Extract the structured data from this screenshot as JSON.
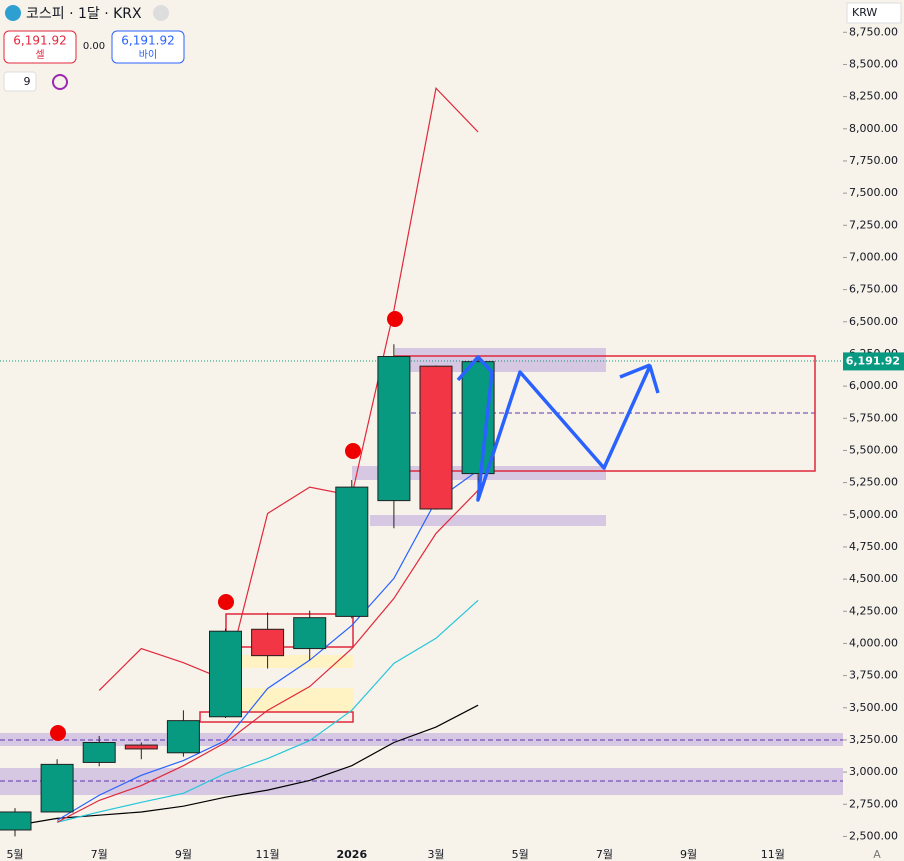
{
  "header": {
    "title": "코스피 · 1달 · KRX",
    "sell_price": "6,191.92",
    "sell_label": "셀",
    "spread": "0.00",
    "buy_price": "6,191.92",
    "buy_label": "바이",
    "indicator_count": "9",
    "currency": "KRW",
    "auto_button": "A"
  },
  "chart_data": {
    "type": "candlestick",
    "categories": [
      "5월",
      null,
      "7월",
      null,
      "9월",
      null,
      "11월",
      null,
      "2026",
      null,
      "3월",
      null,
      "5월",
      null,
      "7월",
      null,
      "9월",
      null,
      "11월",
      null
    ],
    "open": [
      2550,
      2690,
      3075,
      3210,
      3150,
      3430,
      4110,
      3960,
      4210,
      5110,
      6155,
      5320,
      null,
      null,
      null,
      null,
      null,
      null,
      null,
      null
    ],
    "high": [
      2720,
      3100,
      3280,
      3230,
      3480,
      4115,
      4240,
      4255,
      5270,
      6325,
      6160,
      6230,
      null,
      null,
      null,
      null,
      null,
      null,
      null,
      null
    ],
    "low": [
      2500,
      2690,
      3045,
      3100,
      3120,
      3420,
      3805,
      3870,
      4195,
      4895,
      5040,
      5190,
      null,
      null,
      null,
      null,
      null,
      null,
      null,
      null
    ],
    "close": [
      2690,
      3060,
      3230,
      3180,
      3400,
      4095,
      3905,
      4200,
      5215,
      6230,
      5045,
      6190,
      null,
      null,
      null,
      null,
      null,
      null,
      null,
      null
    ],
    "up_color": "#089981",
    "down_color": "#f23645",
    "lines": [
      {
        "color": "#000000",
        "values": [
          2585,
          2640,
          2665,
          2690,
          2735,
          2805,
          2860,
          2935,
          3050,
          3230,
          3350,
          3520,
          null,
          null,
          null,
          null,
          null,
          null,
          null,
          null
        ]
      },
      {
        "color": "#26c6da",
        "values": [
          null,
          2610,
          2690,
          2765,
          2835,
          2990,
          3105,
          3245,
          3480,
          3845,
          4040,
          4335,
          null,
          null,
          null,
          null,
          null,
          null,
          null,
          null
        ]
      },
      {
        "color": "#2962ff",
        "values": [
          null,
          2625,
          2820,
          2975,
          3090,
          3245,
          3650,
          3870,
          4140,
          4505,
          5110,
          5345,
          null,
          null,
          null,
          null,
          null,
          null,
          null,
          null
        ]
      },
      {
        "color": "#e0283c",
        "values": [
          null,
          2610,
          2780,
          2895,
          3050,
          3230,
          3480,
          3665,
          3960,
          4350,
          4855,
          5190,
          null,
          null,
          null,
          null,
          null,
          null,
          null,
          null
        ]
      },
      {
        "color": "#e0283c",
        "values": [
          null,
          null,
          3635,
          3960,
          3850,
          3715,
          5010,
          5215,
          5150,
          6590,
          8315,
          7975,
          null,
          null,
          null,
          null,
          null,
          null,
          null,
          null
        ]
      }
    ],
    "ylim": [
      2410,
      8830
    ],
    "yticks": [
      {
        "value": 2500,
        "label": "2,500.00"
      },
      {
        "value": 2750,
        "label": "2,750.00"
      },
      {
        "value": 3000,
        "label": "3,000.00"
      },
      {
        "value": 3250,
        "label": "3,250.00"
      },
      {
        "value": 3500,
        "label": "3,500.00"
      },
      {
        "value": 3750,
        "label": "3,750.00"
      },
      {
        "value": 4000,
        "label": "4,000.00"
      },
      {
        "value": 4250,
        "label": "4,250.00"
      },
      {
        "value": 4500,
        "label": "4,500.00"
      },
      {
        "value": 4750,
        "label": "4,750.00"
      },
      {
        "value": 5000,
        "label": "5,000.00"
      },
      {
        "value": 5250,
        "label": "5,250.00"
      },
      {
        "value": 5500,
        "label": "5,500.00"
      },
      {
        "value": 5750,
        "label": "5,750.00"
      },
      {
        "value": 6000,
        "label": "6,000.00"
      },
      {
        "value": 6250,
        "label": "6,250.00"
      },
      {
        "value": 6500,
        "label": "6,500.00"
      },
      {
        "value": 6750,
        "label": "6,750.00"
      },
      {
        "value": 7000,
        "label": "7,000.00"
      },
      {
        "value": 7250,
        "label": "7,250.00"
      },
      {
        "value": 7500,
        "label": "7,500.00"
      },
      {
        "value": 7750,
        "label": "7,750.00"
      },
      {
        "value": 8000,
        "label": "8,000.00"
      },
      {
        "value": 8250,
        "label": "8,250.00"
      },
      {
        "value": 8500,
        "label": "8,500.00"
      },
      {
        "value": 8750,
        "label": "8,750.00"
      }
    ],
    "last_price": {
      "value": 6191.92,
      "label": "6,191.92"
    }
  }
}
